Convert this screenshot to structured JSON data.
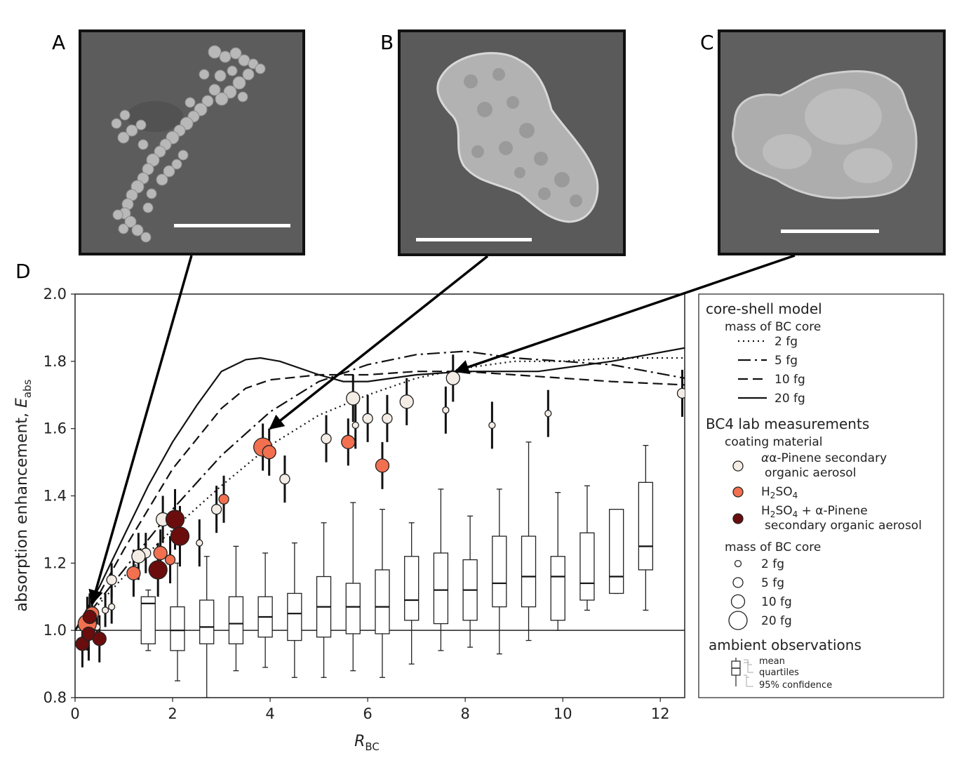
{
  "panels": {
    "a": {
      "letter": "A"
    },
    "b": {
      "letter": "B"
    },
    "c": {
      "letter": "C"
    },
    "d": {
      "letter": "D"
    }
  },
  "colors": {
    "sem_background": "#5a5a5a",
    "particle": "#bdbdbd",
    "scale_bar": "#ffffff",
    "alpha_pinene": "#f4ede6",
    "h2so4": "#f2704f",
    "mixed": "#6b0d0d"
  },
  "chart_data": {
    "type": "scatter",
    "xlabel": "R",
    "xlabel_sub": "BC",
    "ylabel": "absorption enhancement, ",
    "ylabel_italic": "E",
    "ylabel_sub": "abs",
    "xlim": [
      0,
      12.5
    ],
    "ylim": [
      0.8,
      2.0
    ],
    "xticks": [
      "0",
      "2",
      "4",
      "6",
      "8",
      "10",
      "12"
    ],
    "yticks": [
      "0.8",
      "1.0",
      "1.2",
      "1.4",
      "1.6",
      "1.8",
      "2.0"
    ],
    "reference_line": 1.0,
    "model_curves": [
      {
        "name": "2 fg",
        "dash": "2,5",
        "points": [
          [
            0,
            1.0
          ],
          [
            0.5,
            1.08
          ],
          [
            1,
            1.16
          ],
          [
            2,
            1.3
          ],
          [
            3,
            1.43
          ],
          [
            4,
            1.55
          ],
          [
            5,
            1.64
          ],
          [
            6,
            1.7
          ],
          [
            7,
            1.75
          ],
          [
            8,
            1.78
          ],
          [
            9,
            1.8
          ],
          [
            10,
            1.8
          ],
          [
            11,
            1.81
          ],
          [
            12.5,
            1.81
          ]
        ]
      },
      {
        "name": "5 fg",
        "dash": "18,6,3,6",
        "points": [
          [
            0,
            1.0
          ],
          [
            0.5,
            1.09
          ],
          [
            1,
            1.18
          ],
          [
            2,
            1.36
          ],
          [
            3,
            1.52
          ],
          [
            4,
            1.65
          ],
          [
            5,
            1.74
          ],
          [
            6,
            1.79
          ],
          [
            7,
            1.82
          ],
          [
            8,
            1.83
          ],
          [
            9,
            1.81
          ],
          [
            10,
            1.8
          ],
          [
            11,
            1.79
          ],
          [
            12.5,
            1.75
          ]
        ]
      },
      {
        "name": "10 fg",
        "dash": "14,7",
        "points": [
          [
            0,
            1.0
          ],
          [
            0.5,
            1.11
          ],
          [
            1,
            1.24
          ],
          [
            2,
            1.48
          ],
          [
            3,
            1.66
          ],
          [
            3.5,
            1.72
          ],
          [
            4,
            1.745
          ],
          [
            5,
            1.76
          ],
          [
            6,
            1.76
          ],
          [
            7,
            1.77
          ],
          [
            8,
            1.77
          ],
          [
            9,
            1.76
          ],
          [
            10,
            1.75
          ],
          [
            11,
            1.74
          ],
          [
            12.5,
            1.73
          ]
        ]
      },
      {
        "name": "20 fg",
        "dash": "",
        "points": [
          [
            0,
            1.0
          ],
          [
            0.5,
            1.13
          ],
          [
            1,
            1.28
          ],
          [
            1.5,
            1.43
          ],
          [
            2,
            1.56
          ],
          [
            2.5,
            1.67
          ],
          [
            3,
            1.77
          ],
          [
            3.5,
            1.805
          ],
          [
            3.8,
            1.81
          ],
          [
            4.2,
            1.8
          ],
          [
            5,
            1.76
          ],
          [
            5.5,
            1.74
          ],
          [
            6,
            1.74
          ],
          [
            7,
            1.76
          ],
          [
            8,
            1.77
          ],
          [
            9,
            1.77
          ],
          [
            9.5,
            1.77
          ],
          [
            10,
            1.78
          ],
          [
            11,
            1.8
          ],
          [
            12.5,
            1.84
          ]
        ]
      }
    ],
    "boxes": [
      {
        "x": 1.5,
        "mean": 1.08,
        "q1": 0.96,
        "q3": 1.1,
        "lo": 0.94,
        "hi": 1.12
      },
      {
        "x": 2.1,
        "mean": 1.0,
        "q1": 0.94,
        "q3": 1.07,
        "lo": 0.85,
        "hi": 1.2
      },
      {
        "x": 2.7,
        "mean": 1.01,
        "q1": 0.96,
        "q3": 1.09,
        "lo": 0.8,
        "hi": 1.22
      },
      {
        "x": 3.3,
        "mean": 1.02,
        "q1": 0.96,
        "q3": 1.1,
        "lo": 0.88,
        "hi": 1.25
      },
      {
        "x": 3.9,
        "mean": 1.04,
        "q1": 0.98,
        "q3": 1.1,
        "lo": 0.89,
        "hi": 1.23
      },
      {
        "x": 4.5,
        "mean": 1.05,
        "q1": 0.97,
        "q3": 1.11,
        "lo": 0.86,
        "hi": 1.26
      },
      {
        "x": 5.1,
        "mean": 1.07,
        "q1": 0.98,
        "q3": 1.16,
        "lo": 0.86,
        "hi": 1.32
      },
      {
        "x": 5.7,
        "mean": 1.07,
        "q1": 0.99,
        "q3": 1.14,
        "lo": 0.88,
        "hi": 1.38
      },
      {
        "x": 6.3,
        "mean": 1.07,
        "q1": 0.99,
        "q3": 1.18,
        "lo": 0.86,
        "hi": 1.36
      },
      {
        "x": 6.9,
        "mean": 1.09,
        "q1": 1.03,
        "q3": 1.22,
        "lo": 0.9,
        "hi": 1.32
      },
      {
        "x": 7.5,
        "mean": 1.12,
        "q1": 1.02,
        "q3": 1.23,
        "lo": 0.94,
        "hi": 1.42
      },
      {
        "x": 8.1,
        "mean": 1.12,
        "q1": 1.03,
        "q3": 1.21,
        "lo": 0.95,
        "hi": 1.34
      },
      {
        "x": 8.7,
        "mean": 1.14,
        "q1": 1.07,
        "q3": 1.28,
        "lo": 0.93,
        "hi": 1.42
      },
      {
        "x": 9.3,
        "mean": 1.16,
        "q1": 1.07,
        "q3": 1.28,
        "lo": 0.97,
        "hi": 1.56
      },
      {
        "x": 9.9,
        "mean": 1.16,
        "q1": 1.03,
        "q3": 1.22,
        "lo": 1.0,
        "hi": 1.41
      },
      {
        "x": 10.5,
        "mean": 1.14,
        "q1": 1.09,
        "q3": 1.29,
        "lo": 1.06,
        "hi": 1.43
      },
      {
        "x": 11.1,
        "mean": 1.16,
        "q1": 1.11,
        "q3": 1.36,
        "lo": 1.11,
        "hi": 1.36
      },
      {
        "x": 11.7,
        "mean": 1.25,
        "q1": 1.18,
        "q3": 1.44,
        "lo": 1.06,
        "hi": 1.55
      }
    ],
    "points": [
      {
        "c": "alpha_pinene",
        "m": 2,
        "x": 0.45,
        "y": 1.01,
        "e": 0.04
      },
      {
        "c": "alpha_pinene",
        "m": 2,
        "x": 0.62,
        "y": 1.06,
        "e": 0.05
      },
      {
        "c": "alpha_pinene",
        "m": 2,
        "x": 0.75,
        "y": 1.07,
        "e": 0.05
      },
      {
        "c": "alpha_pinene",
        "m": 5,
        "x": 0.75,
        "y": 1.15,
        "e": 0.05
      },
      {
        "c": "alpha_pinene",
        "m": 5,
        "x": 1.45,
        "y": 1.23,
        "e": 0.06
      },
      {
        "c": "alpha_pinene",
        "m": 10,
        "x": 1.3,
        "y": 1.22,
        "e": 0.07
      },
      {
        "c": "alpha_pinene",
        "m": 10,
        "x": 1.8,
        "y": 1.33,
        "e": 0.07
      },
      {
        "c": "alpha_pinene",
        "m": 2,
        "x": 2.55,
        "y": 1.26,
        "e": 0.07
      },
      {
        "c": "alpha_pinene",
        "m": 5,
        "x": 2.9,
        "y": 1.36,
        "e": 0.07
      },
      {
        "c": "alpha_pinene",
        "m": 5,
        "x": 4.3,
        "y": 1.45,
        "e": 0.07
      },
      {
        "c": "alpha_pinene",
        "m": 5,
        "x": 5.15,
        "y": 1.57,
        "e": 0.07
      },
      {
        "c": "alpha_pinene",
        "m": 10,
        "x": 5.7,
        "y": 1.69,
        "e": 0.07
      },
      {
        "c": "alpha_pinene",
        "m": 2,
        "x": 5.75,
        "y": 1.61,
        "e": 0.07
      },
      {
        "c": "alpha_pinene",
        "m": 5,
        "x": 6.0,
        "y": 1.63,
        "e": 0.07
      },
      {
        "c": "alpha_pinene",
        "m": 5,
        "x": 6.4,
        "y": 1.63,
        "e": 0.07
      },
      {
        "c": "alpha_pinene",
        "m": 10,
        "x": 6.8,
        "y": 1.68,
        "e": 0.07
      },
      {
        "c": "alpha_pinene",
        "m": 2,
        "x": 7.6,
        "y": 1.655,
        "e": 0.07
      },
      {
        "c": "alpha_pinene",
        "m": 10,
        "x": 7.75,
        "y": 1.75,
        "e": 0.07
      },
      {
        "c": "alpha_pinene",
        "m": 2,
        "x": 8.55,
        "y": 1.61,
        "e": 0.07
      },
      {
        "c": "alpha_pinene",
        "m": 2,
        "x": 9.7,
        "y": 1.645,
        "e": 0.07
      },
      {
        "c": "alpha_pinene",
        "m": 5,
        "x": 12.45,
        "y": 1.705,
        "e": 0.07
      },
      {
        "c": "h2so4",
        "m": 20,
        "x": 0.25,
        "y": 1.02,
        "e": 0.08
      },
      {
        "c": "h2so4",
        "m": 10,
        "x": 0.35,
        "y": 1.05,
        "e": 0.07
      },
      {
        "c": "h2so4",
        "m": 10,
        "x": 1.2,
        "y": 1.17,
        "e": 0.07
      },
      {
        "c": "h2so4",
        "m": 10,
        "x": 1.75,
        "y": 1.23,
        "e": 0.07
      },
      {
        "c": "h2so4",
        "m": 5,
        "x": 1.95,
        "y": 1.21,
        "e": 0.07
      },
      {
        "c": "h2so4",
        "m": 5,
        "x": 3.05,
        "y": 1.39,
        "e": 0.07
      },
      {
        "c": "h2so4",
        "m": 20,
        "x": 3.85,
        "y": 1.545,
        "e": 0.07
      },
      {
        "c": "h2so4",
        "m": 10,
        "x": 3.98,
        "y": 1.53,
        "e": 0.07
      },
      {
        "c": "h2so4",
        "m": 10,
        "x": 5.6,
        "y": 1.56,
        "e": 0.07
      },
      {
        "c": "h2so4",
        "m": 10,
        "x": 6.3,
        "y": 1.49,
        "e": 0.07
      },
      {
        "c": "mixed",
        "m": 10,
        "x": 0.15,
        "y": 0.96,
        "e": 0.07
      },
      {
        "c": "mixed",
        "m": 10,
        "x": 0.28,
        "y": 0.99,
        "e": 0.08
      },
      {
        "c": "mixed",
        "m": 10,
        "x": 0.3,
        "y": 1.04,
        "e": 0.07
      },
      {
        "c": "mixed",
        "m": 10,
        "x": 0.5,
        "y": 0.975,
        "e": 0.07
      },
      {
        "c": "mixed",
        "m": 20,
        "x": 1.7,
        "y": 1.18,
        "e": 0.08
      },
      {
        "c": "mixed",
        "m": 20,
        "x": 2.05,
        "y": 1.33,
        "e": 0.09
      },
      {
        "c": "mixed",
        "m": 20,
        "x": 2.15,
        "y": 1.28,
        "e": 0.09
      }
    ],
    "arrows": [
      {
        "from": "A",
        "to": [
          0.35,
          1.08
        ]
      },
      {
        "from": "B",
        "to": [
          4.0,
          1.6
        ]
      },
      {
        "from": "C",
        "to": [
          7.8,
          1.77
        ]
      }
    ]
  },
  "legend": {
    "model_title": "core-shell model",
    "model_sub": "mass of BC core",
    "model_items": [
      "2 fg",
      "5 fg",
      "10 fg",
      "20 fg"
    ],
    "lab_title": "BC4 lab measurements",
    "coating_sub": "coating material",
    "coat1_line1": "α-Pinene secondary",
    "coat1_line2": "organic aerosol",
    "coat2_main": "H",
    "coat2_sub1": "2",
    "coat2_mid": "SO",
    "coat2_sub2": "4",
    "coat3_line1_a": "H",
    "coat3_line1_b": "2",
    "coat3_line1_c": "SO",
    "coat3_line1_d": "4",
    "coat3_line1_e": " + α-Pinene",
    "coat3_line2": "secondary organic aerosol",
    "mass_sub": "mass of BC core",
    "mass_items": [
      "2 fg",
      "5 fg",
      "10 fg",
      "20 fg"
    ],
    "ambient_title": "ambient observations",
    "ambient_items": [
      "mean",
      "quartiles",
      "95% confidence"
    ]
  }
}
